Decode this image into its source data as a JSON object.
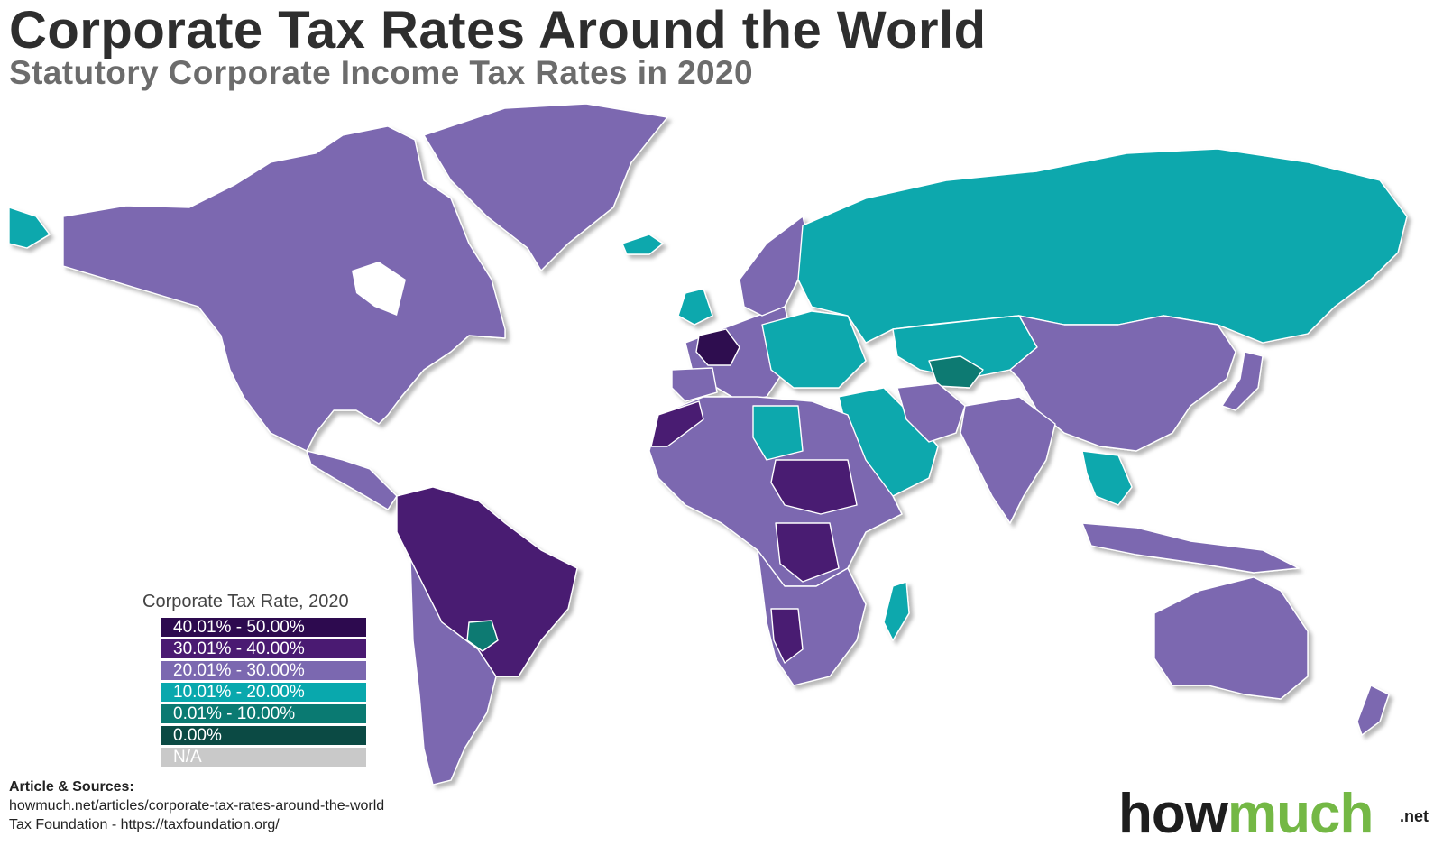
{
  "header": {
    "title": "Corporate Tax Rates Around the World",
    "subtitle": "Statutory Corporate Income Tax Rates in 2020"
  },
  "colors": {
    "rate_40_50": "#2d0a4f",
    "rate_30_40": "#4a1a72",
    "rate_20_30": "#7b68b0",
    "rate_10_20": "#09a8ad",
    "rate_0_10": "#0a7a72",
    "rate_0": "#0b4a44",
    "na": "#c9c9c9"
  },
  "legend": {
    "title": "Corporate Tax Rate, 2020",
    "items": [
      {
        "label": "40.01% - 50.00%",
        "color": "#2d0a4f"
      },
      {
        "label": "30.01% - 40.00%",
        "color": "#4a1a72"
      },
      {
        "label": "20.01% - 30.00%",
        "color": "#7b68b0"
      },
      {
        "label": "10.01% - 20.00%",
        "color": "#09a8ad"
      },
      {
        "label": "0.01% - 10.00%",
        "color": "#0a7a72"
      },
      {
        "label": "0.00%",
        "color": "#0b4a44"
      },
      {
        "label": "N/A",
        "color": "#c9c9c9"
      }
    ]
  },
  "sources": {
    "heading": "Article & Sources:",
    "line1": "howmuch.net/articles/corporate-tax-rates-around-the-world",
    "line2": "Tax Foundation - https://taxfoundation.org/"
  },
  "brand": {
    "part1": "how",
    "part2": "much",
    "suffix": ".net"
  }
}
